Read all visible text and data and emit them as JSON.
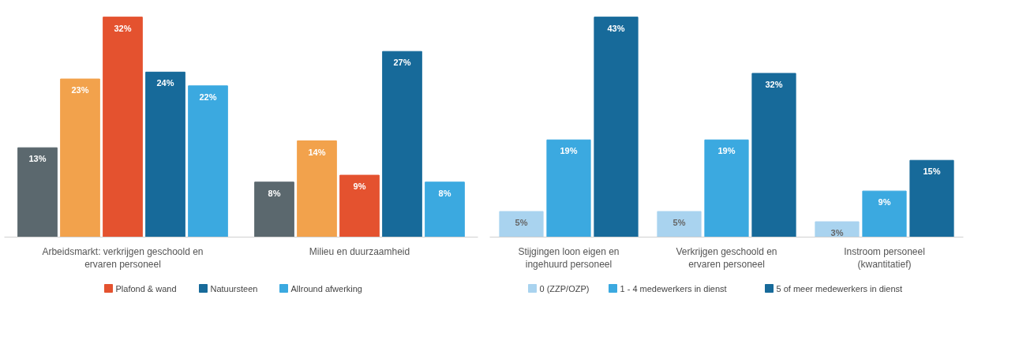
{
  "chart_data": [
    {
      "type": "bar",
      "categories": [
        "Arbeidsmarkt: verkrijgen geschoold en\nervaren personeel",
        "Milieu en duurzaamheid"
      ],
      "series": [
        {
          "color": "#5b686e",
          "values": [
            13,
            8
          ],
          "value_labels": [
            "13%",
            "8%"
          ]
        },
        {
          "color": "#f2a24c",
          "values": [
            23,
            14
          ],
          "value_labels": [
            "23%",
            "14%"
          ]
        },
        {
          "name": "Plafond & wand",
          "color": "#e4522f",
          "values": [
            32,
            9
          ],
          "value_labels": [
            "32%",
            "9%"
          ]
        },
        {
          "name": "Natuursteen",
          "color": "#176a9a",
          "values": [
            24,
            27
          ],
          "value_labels": [
            "24%",
            "27%"
          ]
        },
        {
          "name": "Allround afwerking",
          "color": "#3ba9e0",
          "values": [
            22,
            8
          ],
          "value_labels": [
            "22%",
            "8%"
          ]
        }
      ],
      "legend": "bottom",
      "tick_labels": "x"
    },
    {
      "type": "bar",
      "categories": [
        "Stijgingen loon eigen en\ningehuurd personeel",
        "Verkrijgen geschoold en\nervaren personeel",
        "Instroom personeel\n(kwantitatief)"
      ],
      "series": [
        {
          "name": "0 (ZZP/OZP)",
          "color": "#a9d3ef",
          "values": [
            5,
            5,
            3
          ],
          "value_labels": [
            "5%",
            "5%",
            "3%"
          ]
        },
        {
          "name": "1 - 4 medewerkers in dienst",
          "color": "#3ba9e0",
          "values": [
            19,
            19,
            9
          ],
          "value_labels": [
            "19%",
            "19%",
            "9%"
          ]
        },
        {
          "name": "5 of meer medewerkers in dienst",
          "color": "#176a9a",
          "values": [
            43,
            32,
            15
          ],
          "value_labels": [
            "43%",
            "32%",
            "15%"
          ]
        }
      ],
      "legend": "bottom",
      "tick_labels": "x"
    }
  ]
}
